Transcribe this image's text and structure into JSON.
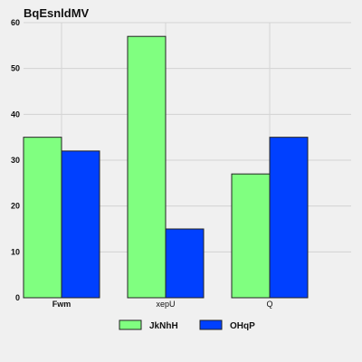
{
  "chart_data": {
    "type": "bar",
    "title": "BqEsnldMV",
    "xlabel": "",
    "ylabel": "",
    "categories": [
      "Fwm",
      "xepU",
      "Q"
    ],
    "series": [
      {
        "name": "JkNhH",
        "values": [
          35,
          57,
          27
        ],
        "color": "#80ff80"
      },
      {
        "name": "OHqP",
        "values": [
          32,
          15,
          35
        ],
        "color": "#0040ff"
      }
    ],
    "ylim": [
      0,
      60
    ],
    "yticks": [
      0,
      10,
      20,
      30,
      40,
      50,
      60
    ],
    "grid": true,
    "legend_position": "bottom"
  }
}
